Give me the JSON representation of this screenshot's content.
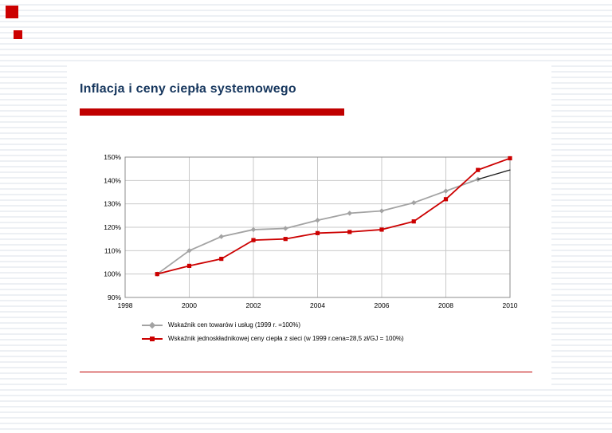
{
  "slide": {
    "title": "Inflacja i ceny ciepła systemowego",
    "accent_color": "#c00000",
    "title_color": "#17375e"
  },
  "chart_data": {
    "type": "line",
    "title": "",
    "xlabel": "",
    "ylabel": "",
    "xlim": [
      1998,
      2010
    ],
    "ylim": [
      90,
      150
    ],
    "x_ticks": [
      1998,
      2000,
      2002,
      2004,
      2006,
      2008,
      2010
    ],
    "y_ticks": [
      90,
      100,
      110,
      120,
      130,
      140,
      150
    ],
    "y_tick_suffix": "%",
    "grid": true,
    "legend_position": "bottom",
    "series": [
      {
        "name": "Wskaźnik cen towarów i usług (1999 r. =100%)",
        "color": "#a3a3a3",
        "marker": "diamond",
        "width": 1.8,
        "x": [
          1999,
          2000,
          2001,
          2002,
          2003,
          2004,
          2005,
          2006,
          2007,
          2008,
          2009
        ],
        "values": [
          100,
          110,
          116,
          119,
          119.5,
          123,
          126,
          127,
          130.5,
          135.5,
          140.5
        ]
      },
      {
        "name": "",
        "color": "#1a1a1a",
        "marker": "none",
        "width": 1.3,
        "x": [
          2009,
          2010
        ],
        "values": [
          140.5,
          144.5
        ]
      },
      {
        "name": "Wskaźnik jednoskładnikowej ceny ciepła z sieci (w 1999 r.cena=28,5 zł/GJ = 100%)",
        "color": "#cc0000",
        "marker": "square",
        "width": 1.8,
        "x": [
          1999,
          2000,
          2001,
          2002,
          2003,
          2004,
          2005,
          2006,
          2007,
          2008,
          2009,
          2010
        ],
        "values": [
          100,
          103.5,
          106.5,
          114.5,
          115,
          117.5,
          118,
          119,
          122.5,
          132,
          144.5,
          149.5
        ]
      }
    ]
  }
}
